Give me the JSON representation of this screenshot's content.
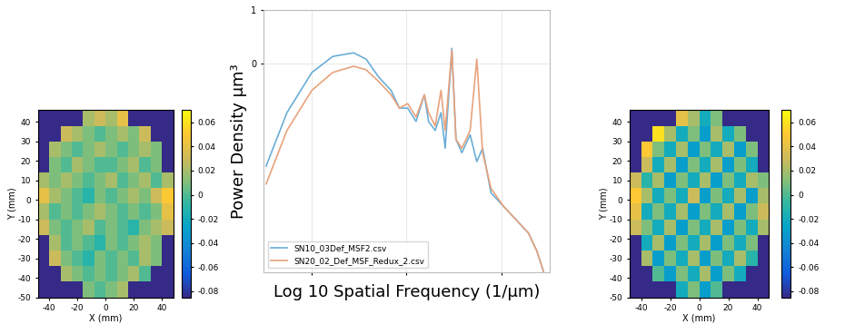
{
  "chart_data": [
    {
      "type": "heatmap",
      "xlabel": "X (mm)",
      "ylabel": "Y (mm)",
      "xlim": [
        -48,
        48
      ],
      "xticks": [
        -40,
        -20,
        0,
        20,
        40
      ],
      "ylim": [
        -50,
        46
      ],
      "yticks": [
        -50,
        -40,
        -30,
        -20,
        -10,
        0,
        10,
        20,
        30,
        40
      ],
      "x_edges": [
        -48,
        -40,
        -32,
        -24,
        -16,
        -8,
        0,
        8,
        16,
        24,
        32,
        40,
        48
      ],
      "y_edges": [
        -50,
        -42,
        -34,
        -26,
        -18,
        -10,
        -2,
        6,
        14,
        22,
        30,
        38,
        46
      ],
      "cells": [
        [
          null,
          null,
          null,
          null,
          0.01,
          0.0,
          0.01,
          0.02,
          null,
          null,
          null,
          null
        ],
        [
          null,
          null,
          0.02,
          0.01,
          0.0,
          0.01,
          0.0,
          0.01,
          0.02,
          0.0,
          null,
          null
        ],
        [
          null,
          0.03,
          0.01,
          0.0,
          -0.01,
          0.01,
          0.0,
          0.01,
          0.0,
          0.02,
          0.01,
          null
        ],
        [
          null,
          0.02,
          0.0,
          0.01,
          0.0,
          -0.01,
          0.01,
          0.0,
          0.01,
          0.02,
          0.01,
          null
        ],
        [
          0.03,
          0.01,
          0.0,
          0.01,
          0.02,
          0.0,
          0.01,
          0.0,
          -0.01,
          0.01,
          0.02,
          0.03
        ],
        [
          0.02,
          0.0,
          0.01,
          0.0,
          0.01,
          0.02,
          0.01,
          0.0,
          0.01,
          0.0,
          0.01,
          0.04
        ],
        [
          0.04,
          0.02,
          0.01,
          0.0,
          -0.01,
          0.01,
          0.0,
          0.01,
          0.02,
          0.01,
          0.03,
          0.05
        ],
        [
          0.02,
          0.01,
          0.02,
          0.01,
          0.0,
          0.01,
          0.02,
          0.0,
          0.01,
          0.02,
          0.0,
          0.02
        ],
        [
          null,
          0.01,
          0.0,
          0.02,
          0.01,
          0.0,
          0.0,
          0.01,
          0.02,
          0.0,
          0.01,
          null
        ],
        [
          null,
          0.02,
          0.01,
          0.0,
          0.01,
          0.02,
          0.01,
          0.0,
          0.01,
          0.02,
          0.01,
          null
        ],
        [
          null,
          null,
          0.03,
          0.02,
          0.01,
          0.0,
          0.01,
          0.02,
          0.01,
          0.03,
          null,
          null
        ],
        [
          null,
          null,
          null,
          null,
          0.02,
          0.03,
          0.02,
          0.04,
          null,
          null,
          null,
          null
        ]
      ],
      "color_range": [
        -0.085,
        0.07
      ],
      "color_ticks": [
        -0.08,
        -0.06,
        -0.04,
        -0.02,
        0,
        0.02,
        0.04,
        0.06
      ]
    },
    {
      "type": "line",
      "xlabel": "Log 10 Spatial Frequency (1/µm)",
      "ylabel": "Power Density µm³",
      "xlim": [
        -4.5,
        -1.5
      ],
      "xticks": [
        -4,
        -3,
        -2
      ],
      "ylim": [
        -3.9,
        1
      ],
      "yticks": [
        0,
        1
      ],
      "tick_labels": "y",
      "grid": true,
      "legend": "lower left",
      "x": [
        -4.474,
        -4.255,
        -3.993,
        -3.774,
        -3.555,
        -3.424,
        -3.293,
        -3.162,
        -3.074,
        -2.987,
        -2.899,
        -2.812,
        -2.768,
        -2.698,
        -2.637,
        -2.593,
        -2.523,
        -2.48,
        -2.418,
        -2.331,
        -2.261,
        -2.2,
        -2.112,
        -1.981,
        -1.85,
        -1.719,
        -1.631,
        -1.561
      ],
      "series": [
        {
          "name": "SN10_03Def_MSF2.csv",
          "color": "#6aaed6",
          "values": [
            -1.917,
            -0.917,
            -0.167,
            0.133,
            0.2,
            0.083,
            -0.25,
            -0.5,
            -0.833,
            -0.833,
            -1.083,
            -0.583,
            -1.083,
            -1.25,
            -0.917,
            -1.583,
            0.283,
            -1.417,
            -1.667,
            -1.333,
            -1.833,
            -1.583,
            -2.417,
            -2.667,
            -2.917,
            -3.167,
            -3.5,
            -3.883
          ]
        },
        {
          "name": "SN20_02_Def_MSF_Redux_2.csv",
          "color": "#e9a27c",
          "values": [
            -2.25,
            -1.25,
            -0.5,
            -0.167,
            -0.05,
            -0.117,
            -0.333,
            -0.583,
            -0.833,
            -0.75,
            -1.0,
            -0.583,
            -0.917,
            -1.167,
            -0.5,
            -1.25,
            0.25,
            -1.417,
            -1.583,
            -1.25,
            0.083,
            -1.667,
            -2.333,
            -2.667,
            -2.917,
            -3.167,
            -3.5,
            -3.883
          ]
        }
      ]
    },
    {
      "type": "heatmap",
      "xlabel": "X (mm)",
      "ylabel": "Y (mm)",
      "xlim": [
        -48,
        48
      ],
      "xticks": [
        -40,
        -20,
        0,
        20,
        40
      ],
      "ylim": [
        -50,
        46
      ],
      "yticks": [
        -50,
        -40,
        -30,
        -20,
        -10,
        0,
        10,
        20,
        30,
        40
      ],
      "x_edges": [
        -48,
        -40,
        -32,
        -24,
        -16,
        -8,
        0,
        8,
        16,
        24,
        32,
        40,
        48
      ],
      "y_edges": [
        -50,
        -42,
        -34,
        -26,
        -18,
        -10,
        -2,
        6,
        14,
        22,
        30,
        38,
        46
      ],
      "cells": [
        [
          null,
          null,
          null,
          null,
          -0.02,
          0.01,
          -0.03,
          0.0,
          null,
          null,
          null,
          null
        ],
        [
          null,
          null,
          0.0,
          -0.03,
          0.01,
          -0.02,
          0.02,
          -0.03,
          0.01,
          -0.02,
          null,
          null
        ],
        [
          null,
          0.02,
          -0.03,
          0.01,
          -0.02,
          0.02,
          -0.03,
          0.01,
          -0.02,
          0.02,
          -0.01,
          null
        ],
        [
          null,
          -0.02,
          0.02,
          -0.03,
          0.01,
          -0.02,
          0.02,
          -0.03,
          0.01,
          -0.02,
          0.01,
          null
        ],
        [
          0.03,
          0.01,
          -0.02,
          0.02,
          -0.03,
          0.01,
          -0.02,
          0.02,
          -0.03,
          0.01,
          -0.02,
          0.02
        ],
        [
          0.04,
          -0.02,
          0.01,
          -0.02,
          0.02,
          -0.03,
          0.01,
          -0.02,
          0.02,
          -0.03,
          0.01,
          0.03
        ],
        [
          0.05,
          0.02,
          -0.02,
          0.01,
          -0.02,
          0.03,
          -0.03,
          0.01,
          -0.02,
          0.02,
          -0.03,
          0.02
        ],
        [
          0.03,
          -0.01,
          0.02,
          -0.03,
          0.01,
          -0.02,
          0.02,
          -0.03,
          0.01,
          -0.02,
          0.02,
          0.01
        ],
        [
          null,
          0.03,
          -0.02,
          0.02,
          -0.03,
          0.01,
          -0.02,
          0.02,
          -0.03,
          0.01,
          -0.02,
          null
        ],
        [
          null,
          0.05,
          0.01,
          -0.02,
          0.02,
          -0.03,
          0.01,
          -0.02,
          0.02,
          -0.03,
          0.01,
          null
        ],
        [
          null,
          null,
          0.06,
          0.02,
          -0.02,
          0.01,
          -0.03,
          0.02,
          -0.02,
          0.01,
          null,
          null
        ],
        [
          null,
          null,
          null,
          null,
          0.04,
          0.02,
          -0.02,
          0.01,
          null,
          null,
          null,
          null
        ]
      ],
      "color_range": [
        -0.085,
        0.07
      ],
      "color_ticks": [
        -0.08,
        -0.06,
        -0.04,
        -0.02,
        0,
        0.02,
        0.04,
        0.06
      ]
    }
  ]
}
